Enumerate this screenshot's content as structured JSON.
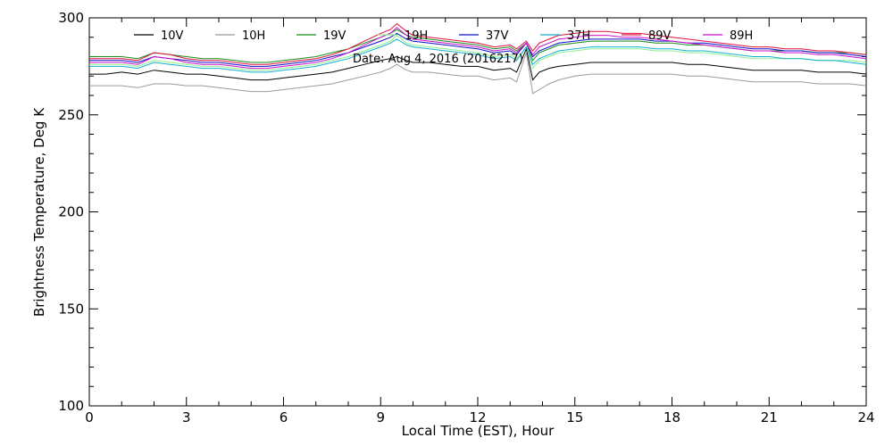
{
  "chart_data": {
    "type": "line",
    "title": "",
    "annotation": "Date: Aug  4, 2016 (2016217)",
    "xlabel": "Local Time (EST), Hour",
    "ylabel": "Brightness Temperature, Deg K",
    "xlim": [
      0,
      24
    ],
    "ylim": [
      100,
      300
    ],
    "xticks": [
      0,
      3,
      6,
      9,
      12,
      15,
      18,
      21,
      24
    ],
    "yticks": [
      100,
      150,
      200,
      250,
      300
    ],
    "grid": false,
    "legend_position": "top",
    "x": [
      0,
      0.5,
      1,
      1.5,
      2,
      2.5,
      3,
      3.5,
      4,
      4.5,
      5,
      5.5,
      6,
      6.5,
      7,
      7.5,
      8,
      8.5,
      9,
      9.3,
      9.5,
      9.8,
      10,
      10.5,
      11,
      11.5,
      12,
      12.5,
      13,
      13.2,
      13.5,
      13.7,
      13.9,
      14.2,
      14.5,
      15,
      15.5,
      16,
      16.5,
      17,
      17.5,
      18,
      18.5,
      19,
      19.5,
      20,
      20.5,
      21,
      21.5,
      22,
      22.5,
      23,
      23.5,
      24
    ],
    "series": [
      {
        "name": "10V",
        "color": "#000000",
        "values": [
          271,
          271,
          272,
          271,
          273,
          272,
          271,
          271,
          270,
          269,
          268,
          268,
          269,
          270,
          271,
          272,
          274,
          276,
          278,
          279,
          280,
          278,
          277,
          277,
          276,
          275,
          275,
          273,
          274,
          272,
          284,
          268,
          272,
          274,
          275,
          276,
          277,
          277,
          277,
          277,
          277,
          277,
          276,
          276,
          275,
          274,
          273,
          273,
          273,
          273,
          272,
          272,
          272,
          271
        ]
      },
      {
        "name": "10H",
        "color": "#9a9a9a",
        "values": [
          265,
          265,
          265,
          264,
          266,
          266,
          265,
          265,
          264,
          263,
          262,
          262,
          263,
          264,
          265,
          266,
          268,
          270,
          272,
          274,
          276,
          273,
          272,
          272,
          271,
          270,
          270,
          268,
          269,
          267,
          282,
          261,
          263,
          266,
          268,
          270,
          271,
          271,
          271,
          271,
          271,
          271,
          270,
          270,
          269,
          268,
          267,
          267,
          267,
          267,
          266,
          266,
          266,
          265
        ]
      },
      {
        "name": "19V",
        "color": "#1a8c1a",
        "values": [
          280,
          280,
          280,
          279,
          282,
          281,
          280,
          279,
          279,
          278,
          277,
          277,
          278,
          279,
          280,
          282,
          284,
          287,
          290,
          292,
          294,
          291,
          290,
          289,
          288,
          287,
          286,
          284,
          285,
          283,
          287,
          278,
          282,
          284,
          286,
          287,
          288,
          288,
          288,
          288,
          287,
          287,
          286,
          286,
          285,
          284,
          283,
          283,
          283,
          283,
          282,
          282,
          282,
          281
        ]
      },
      {
        "name": "19H",
        "color": "#90ee90",
        "values": [
          276,
          276,
          276,
          275,
          278,
          277,
          276,
          275,
          275,
          274,
          273,
          273,
          274,
          275,
          276,
          278,
          280,
          283,
          286,
          288,
          291,
          287,
          286,
          285,
          284,
          283,
          282,
          280,
          281,
          279,
          285,
          274,
          278,
          280,
          282,
          283,
          284,
          284,
          284,
          284,
          283,
          283,
          282,
          282,
          281,
          280,
          279,
          279,
          279,
          279,
          278,
          278,
          278,
          277
        ]
      },
      {
        "name": "37V",
        "color": "#1010cc",
        "values": [
          278,
          278,
          278,
          277,
          280,
          279,
          278,
          277,
          277,
          276,
          275,
          275,
          276,
          277,
          278,
          280,
          282,
          285,
          288,
          290,
          292,
          289,
          288,
          287,
          286,
          285,
          284,
          282,
          283,
          281,
          287,
          280,
          283,
          285,
          287,
          288,
          289,
          289,
          289,
          289,
          288,
          288,
          287,
          287,
          286,
          285,
          284,
          284,
          283,
          283,
          282,
          282,
          281,
          280
        ]
      },
      {
        "name": "37H",
        "color": "#10b0cc",
        "values": [
          275,
          275,
          275,
          274,
          277,
          276,
          275,
          274,
          274,
          273,
          272,
          272,
          273,
          274,
          275,
          277,
          279,
          282,
          285,
          287,
          289,
          286,
          285,
          284,
          283,
          282,
          281,
          279,
          280,
          278,
          285,
          276,
          279,
          281,
          283,
          284,
          285,
          285,
          285,
          285,
          284,
          284,
          283,
          283,
          282,
          281,
          280,
          280,
          279,
          279,
          278,
          278,
          277,
          276
        ]
      },
      {
        "name": "89V",
        "color": "#e0103c",
        "values": [
          279,
          279,
          279,
          278,
          282,
          281,
          279,
          278,
          278,
          277,
          276,
          276,
          277,
          278,
          279,
          281,
          284,
          288,
          292,
          294,
          297,
          293,
          291,
          290,
          289,
          288,
          287,
          285,
          286,
          284,
          288,
          283,
          287,
          289,
          291,
          292,
          293,
          293,
          292,
          292,
          291,
          290,
          289,
          288,
          287,
          286,
          285,
          285,
          284,
          284,
          283,
          283,
          282,
          281
        ]
      },
      {
        "name": "89H",
        "color": "#cc10cc",
        "values": [
          277,
          277,
          277,
          276,
          280,
          279,
          277,
          276,
          276,
          275,
          274,
          274,
          275,
          276,
          277,
          279,
          282,
          286,
          290,
          292,
          295,
          291,
          289,
          288,
          287,
          286,
          285,
          283,
          284,
          282,
          287,
          281,
          285,
          287,
          289,
          290,
          291,
          291,
          290,
          290,
          289,
          288,
          287,
          286,
          285,
          284,
          283,
          283,
          282,
          282,
          281,
          281,
          280,
          279
        ]
      }
    ]
  }
}
